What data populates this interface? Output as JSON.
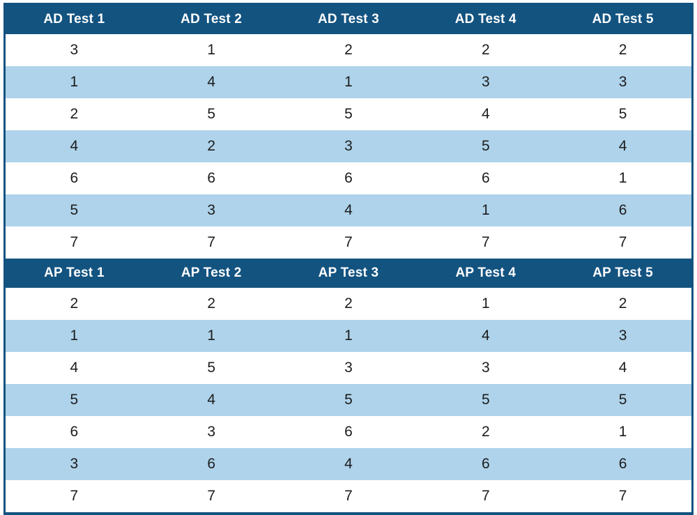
{
  "chart_data": {
    "type": "table",
    "sections": [
      {
        "id": "ad",
        "headers": [
          "AD Test 1",
          "AD Test 2",
          "AD Test 3",
          "AD Test 4",
          "AD Test 5"
        ],
        "rows": [
          [
            3,
            1,
            2,
            2,
            2
          ],
          [
            1,
            4,
            1,
            3,
            3
          ],
          [
            2,
            5,
            5,
            4,
            5
          ],
          [
            4,
            2,
            3,
            5,
            4
          ],
          [
            6,
            6,
            6,
            6,
            1
          ],
          [
            5,
            3,
            4,
            1,
            6
          ],
          [
            7,
            7,
            7,
            7,
            7
          ]
        ]
      },
      {
        "id": "ap",
        "headers": [
          "AP Test 1",
          "AP Test 2",
          "AP Test 3",
          "AP Test 4",
          "AP Test 5"
        ],
        "rows": [
          [
            2,
            2,
            2,
            1,
            2
          ],
          [
            1,
            1,
            1,
            4,
            3
          ],
          [
            4,
            5,
            3,
            3,
            4
          ],
          [
            5,
            4,
            5,
            5,
            5
          ],
          [
            6,
            3,
            6,
            2,
            1
          ],
          [
            3,
            6,
            4,
            6,
            6
          ],
          [
            7,
            7,
            7,
            7,
            7
          ]
        ]
      }
    ],
    "layout": {
      "striped": true,
      "stripe_pattern": "even_rows_white_odd_rows_blue",
      "columns_per_section": 5,
      "rows_per_section": 7
    }
  },
  "colors": {
    "header_bg": "#135380",
    "stripe_bg": "#AED3EA",
    "row_bg": "#FFFFFF",
    "header_text": "#FFFFFF",
    "cell_text": "#1C1C1E",
    "border": "#135380",
    "page_bg": "#FFFFFF"
  }
}
